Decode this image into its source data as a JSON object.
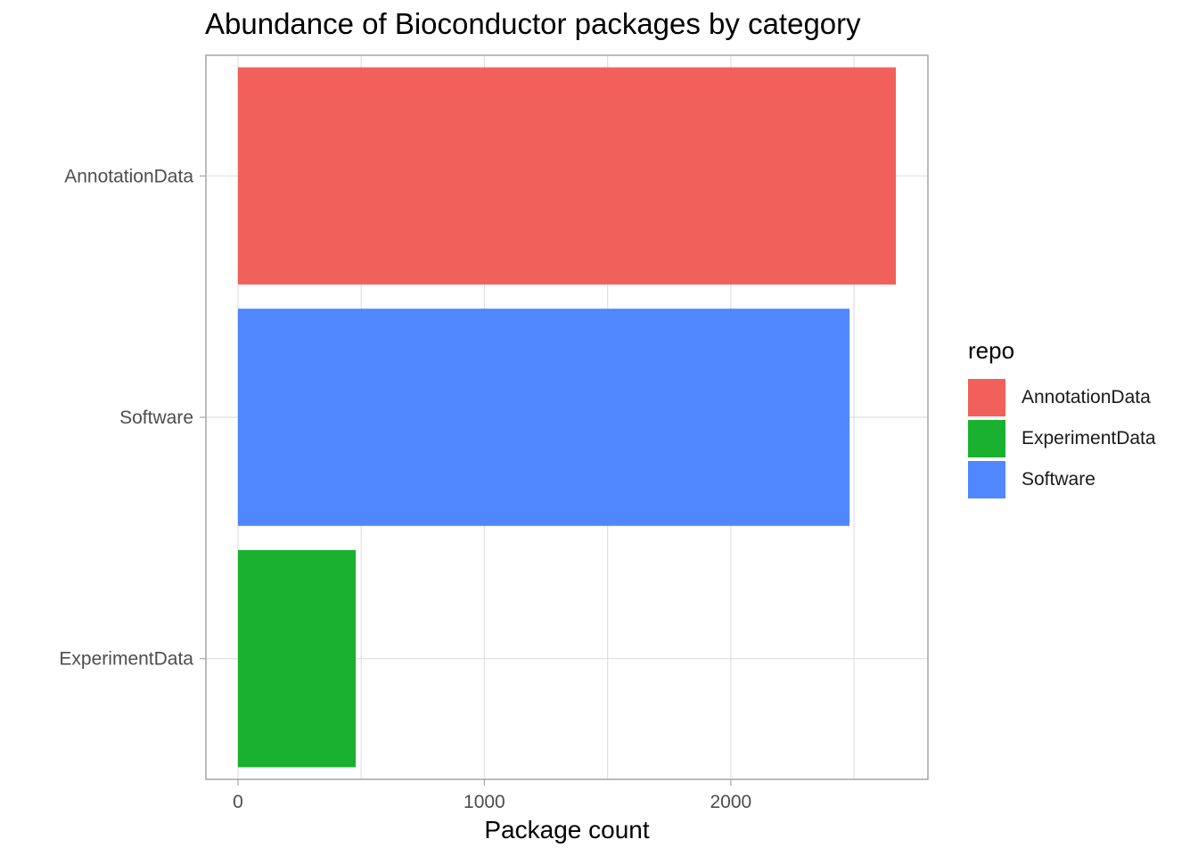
{
  "chart_data": {
    "type": "bar",
    "orientation": "horizontal",
    "title": "Abundance of Bioconductor packages by category",
    "xlabel": "Package count",
    "ylabel": "",
    "categories": [
      "AnnotationData",
      "Software",
      "ExperimentData"
    ],
    "values": [
      2670,
      2482,
      478
    ],
    "colors": [
      "#F2605C",
      "#5087FF",
      "#19B12F"
    ],
    "xlim": [
      -130,
      2800
    ],
    "x_ticks": [
      0,
      1000,
      2000
    ],
    "grid": true,
    "legend": {
      "title": "repo",
      "position": "right",
      "entries": [
        {
          "label": "AnnotationData",
          "color": "#F2605C"
        },
        {
          "label": "ExperimentData",
          "color": "#19B12F"
        },
        {
          "label": "Software",
          "color": "#5087FF"
        }
      ]
    }
  }
}
